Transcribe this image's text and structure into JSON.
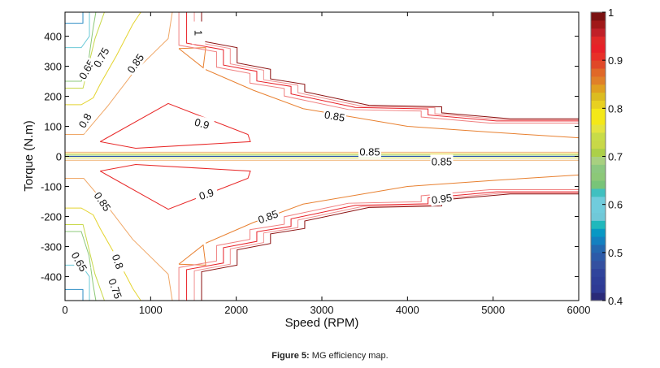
{
  "chart_data": {
    "type": "contour",
    "title": "",
    "xlabel": "Speed (RPM)",
    "ylabel": "Torque (N.m)",
    "xlim": [
      0,
      6000
    ],
    "ylim": [
      -480,
      480
    ],
    "xticks": [
      0,
      1000,
      2000,
      3000,
      4000,
      5000,
      6000
    ],
    "yticks": [
      -400,
      -300,
      -200,
      -100,
      0,
      100,
      200,
      300,
      400
    ],
    "grid": false,
    "colorbar": {
      "range": [
        0.4,
        1
      ],
      "ticks": [
        0.4,
        0.5,
        0.6,
        0.7,
        0.8,
        0.9,
        1
      ],
      "colors": [
        "#2a2a78",
        "#2e3a94",
        "#2e3e98",
        "#30449c",
        "#3450a0",
        "#2c5aa8",
        "#2468b0",
        "#1480c0",
        "#0898c4",
        "#20b8bc",
        "#70c8d8",
        "#70ccdc",
        "#70ccdc",
        "#40c0c0",
        "#78c478",
        "#8cc878",
        "#8cc880",
        "#a8d080",
        "#acd048",
        "#c8d848",
        "#c8dc48",
        "#e4e440",
        "#f4e818",
        "#f4e818",
        "#e8d020",
        "#dcbc20",
        "#e0a020",
        "#e08028",
        "#e06828",
        "#e04828",
        "#e83028",
        "#e82028",
        "#e02828",
        "#c02028",
        "#a01818",
        "#7a1010"
      ]
    },
    "levels": [
      {
        "level": 0.55,
        "color": "#2b8cc4",
        "points": [
          [
            209,
            480
          ],
          [
            209,
            443
          ],
          [
            0,
            443
          ]
        ]
      },
      {
        "level": 0.6,
        "color": "#6ccad8",
        "points": [
          [
            285,
            480
          ],
          [
            285,
            400
          ],
          [
            190,
            362
          ],
          [
            0,
            362
          ]
        ]
      },
      {
        "level": 0.65,
        "color": "#70ccdc",
        "points": [
          [
            0,
            300
          ],
          [
            40,
            300
          ]
        ]
      },
      {
        "level": 0.7,
        "color": "#8cc878",
        "points": [
          [
            360,
            480
          ],
          [
            330,
            430
          ],
          [
            280,
            330
          ],
          [
            190,
            250
          ],
          [
            0,
            250
          ]
        ]
      },
      {
        "level": 0.75,
        "color": "#c8d848",
        "points": [
          [
            460,
            480
          ],
          [
            350,
            392
          ],
          [
            210,
            227
          ],
          [
            0,
            227
          ]
        ]
      },
      {
        "level": 0.8,
        "color": "#e4d430",
        "points": [
          [
            885,
            480
          ],
          [
            790,
            439
          ],
          [
            600,
            335
          ],
          [
            410,
            240
          ],
          [
            330,
            195
          ],
          [
            190,
            172
          ],
          [
            0,
            172
          ]
        ]
      },
      {
        "level": 0.85,
        "color": "#f0a868",
        "points": [
          [
            1253,
            480
          ],
          [
            1205,
            392
          ],
          [
            790,
            276
          ],
          [
            500,
            168
          ],
          [
            218,
            73
          ],
          [
            0,
            73
          ]
        ]
      },
      {
        "level": 0.85,
        "color": "#e88030",
        "points": [
          [
            1643,
            289
          ],
          [
            2200,
            220
          ],
          [
            2780,
            159
          ],
          [
            4000,
            100
          ],
          [
            5000,
            80
          ],
          [
            6000,
            62
          ]
        ]
      },
      {
        "level": 0.85,
        "color": "#e88030",
        "points": [
          [
            1329,
            359
          ],
          [
            1614,
            295
          ],
          [
            1643,
            362
          ],
          [
            1329,
            359
          ]
        ]
      },
      {
        "level": 0.9,
        "color": "#e82828",
        "points": [
          [
            410,
            49
          ],
          [
            1205,
            176
          ],
          [
            2136,
            73
          ],
          [
            2165,
            49
          ],
          [
            825,
            27
          ],
          [
            410,
            49
          ]
        ]
      },
      {
        "level": 0.9,
        "color": "#f08080",
        "points": [
          [
            1330,
            480
          ],
          [
            1330,
            370
          ],
          [
            1770,
            348
          ],
          [
            1770,
            297
          ],
          [
            2160,
            276
          ],
          [
            2160,
            244
          ],
          [
            2560,
            226
          ],
          [
            2560,
            201
          ],
          [
            3310,
            156
          ],
          [
            4160,
            151
          ],
          [
            4160,
            131
          ],
          [
            4960,
            111
          ],
          [
            6000,
            111
          ]
        ]
      },
      {
        "level": 0.92,
        "color": "#e82028",
        "points": [
          [
            1420,
            480
          ],
          [
            1420,
            377
          ],
          [
            1850,
            355
          ],
          [
            1850,
            304
          ],
          [
            2240,
            283
          ],
          [
            2240,
            251
          ],
          [
            2640,
            233
          ],
          [
            2640,
            208
          ],
          [
            3390,
            163
          ],
          [
            4240,
            158
          ],
          [
            4240,
            138
          ],
          [
            5040,
            118
          ],
          [
            6000,
            118
          ]
        ]
      },
      {
        "level": 0.95,
        "color": "#f09090",
        "points": [
          [
            1510,
            480
          ],
          [
            1510,
            381
          ],
          [
            1930,
            359
          ],
          [
            1930,
            308
          ],
          [
            2320,
            287
          ],
          [
            2320,
            255
          ],
          [
            2720,
            237
          ],
          [
            2720,
            212
          ],
          [
            3470,
            167
          ],
          [
            4320,
            162
          ],
          [
            4320,
            142
          ],
          [
            5120,
            122
          ],
          [
            6000,
            122
          ]
        ]
      },
      {
        "level": 1.0,
        "color": "#8b1010",
        "points": [
          [
            1595,
            480
          ],
          [
            1595,
            384
          ],
          [
            2010,
            362
          ],
          [
            2010,
            311
          ],
          [
            2400,
            290
          ],
          [
            2400,
            258
          ],
          [
            2800,
            240
          ],
          [
            2800,
            215
          ],
          [
            3550,
            170
          ],
          [
            4400,
            165
          ],
          [
            4400,
            145
          ],
          [
            5200,
            125
          ],
          [
            6000,
            125
          ]
        ]
      },
      {
        "level": 0.85,
        "color": "#f0b070",
        "points": [
          [
            0,
            14
          ],
          [
            6000,
            14
          ]
        ]
      },
      {
        "level": 0.8,
        "color": "#e4d430",
        "points": [
          [
            0,
            8
          ],
          [
            6000,
            8
          ]
        ]
      },
      {
        "level": 0.7,
        "color": "#8cc878",
        "points": [
          [
            0,
            4
          ],
          [
            6000,
            4
          ]
        ]
      },
      {
        "level": 0.5,
        "color": "#2850a8",
        "points": [
          [
            0,
            0
          ],
          [
            6000,
            0
          ]
        ]
      },
      {
        "level": 0.75,
        "color": "#c8d848",
        "points": [
          [
            0,
            -5
          ],
          [
            6000,
            -5
          ]
        ]
      },
      {
        "level": 0.85,
        "color": "#f0b070",
        "points": [
          [
            0,
            -13
          ],
          [
            6000,
            -13
          ]
        ]
      }
    ],
    "mirror_levels_about_zero": true,
    "annotations": [
      {
        "text": "1",
        "x": 1560,
        "y": 411,
        "angle": 90
      },
      {
        "text": "0.65",
        "x": 250,
        "y": 290,
        "angle": -60
      },
      {
        "text": "0.75",
        "x": 420,
        "y": 330,
        "angle": -60
      },
      {
        "text": "0.85",
        "x": 820,
        "y": 310,
        "angle": -55
      },
      {
        "text": "0.8",
        "x": 230,
        "y": 120,
        "angle": -60
      },
      {
        "text": "0.9",
        "x": 1600,
        "y": 110,
        "angle": 15
      },
      {
        "text": "0.85",
        "x": 3150,
        "y": 135,
        "angle": 10
      },
      {
        "text": "0.85",
        "x": 3560,
        "y": 16,
        "angle": 0
      },
      {
        "text": "0.85",
        "x": 4400,
        "y": -16,
        "angle": 0
      },
      {
        "text": "0.85",
        "x": 440,
        "y": -150,
        "angle": 55
      },
      {
        "text": "0.9",
        "x": 1650,
        "y": -125,
        "angle": -18
      },
      {
        "text": "0.85",
        "x": 2370,
        "y": -200,
        "angle": -20
      },
      {
        "text": "0.65",
        "x": 170,
        "y": -350,
        "angle": 60
      },
      {
        "text": "0.8",
        "x": 620,
        "y": -350,
        "angle": 70
      },
      {
        "text": "0.75",
        "x": 590,
        "y": -440,
        "angle": 70
      },
      {
        "text": "0.95",
        "x": 4400,
        "y": -140,
        "angle": -8
      }
    ]
  },
  "caption": {
    "label": "Figure 5:",
    "text": " MG efficiency map."
  }
}
